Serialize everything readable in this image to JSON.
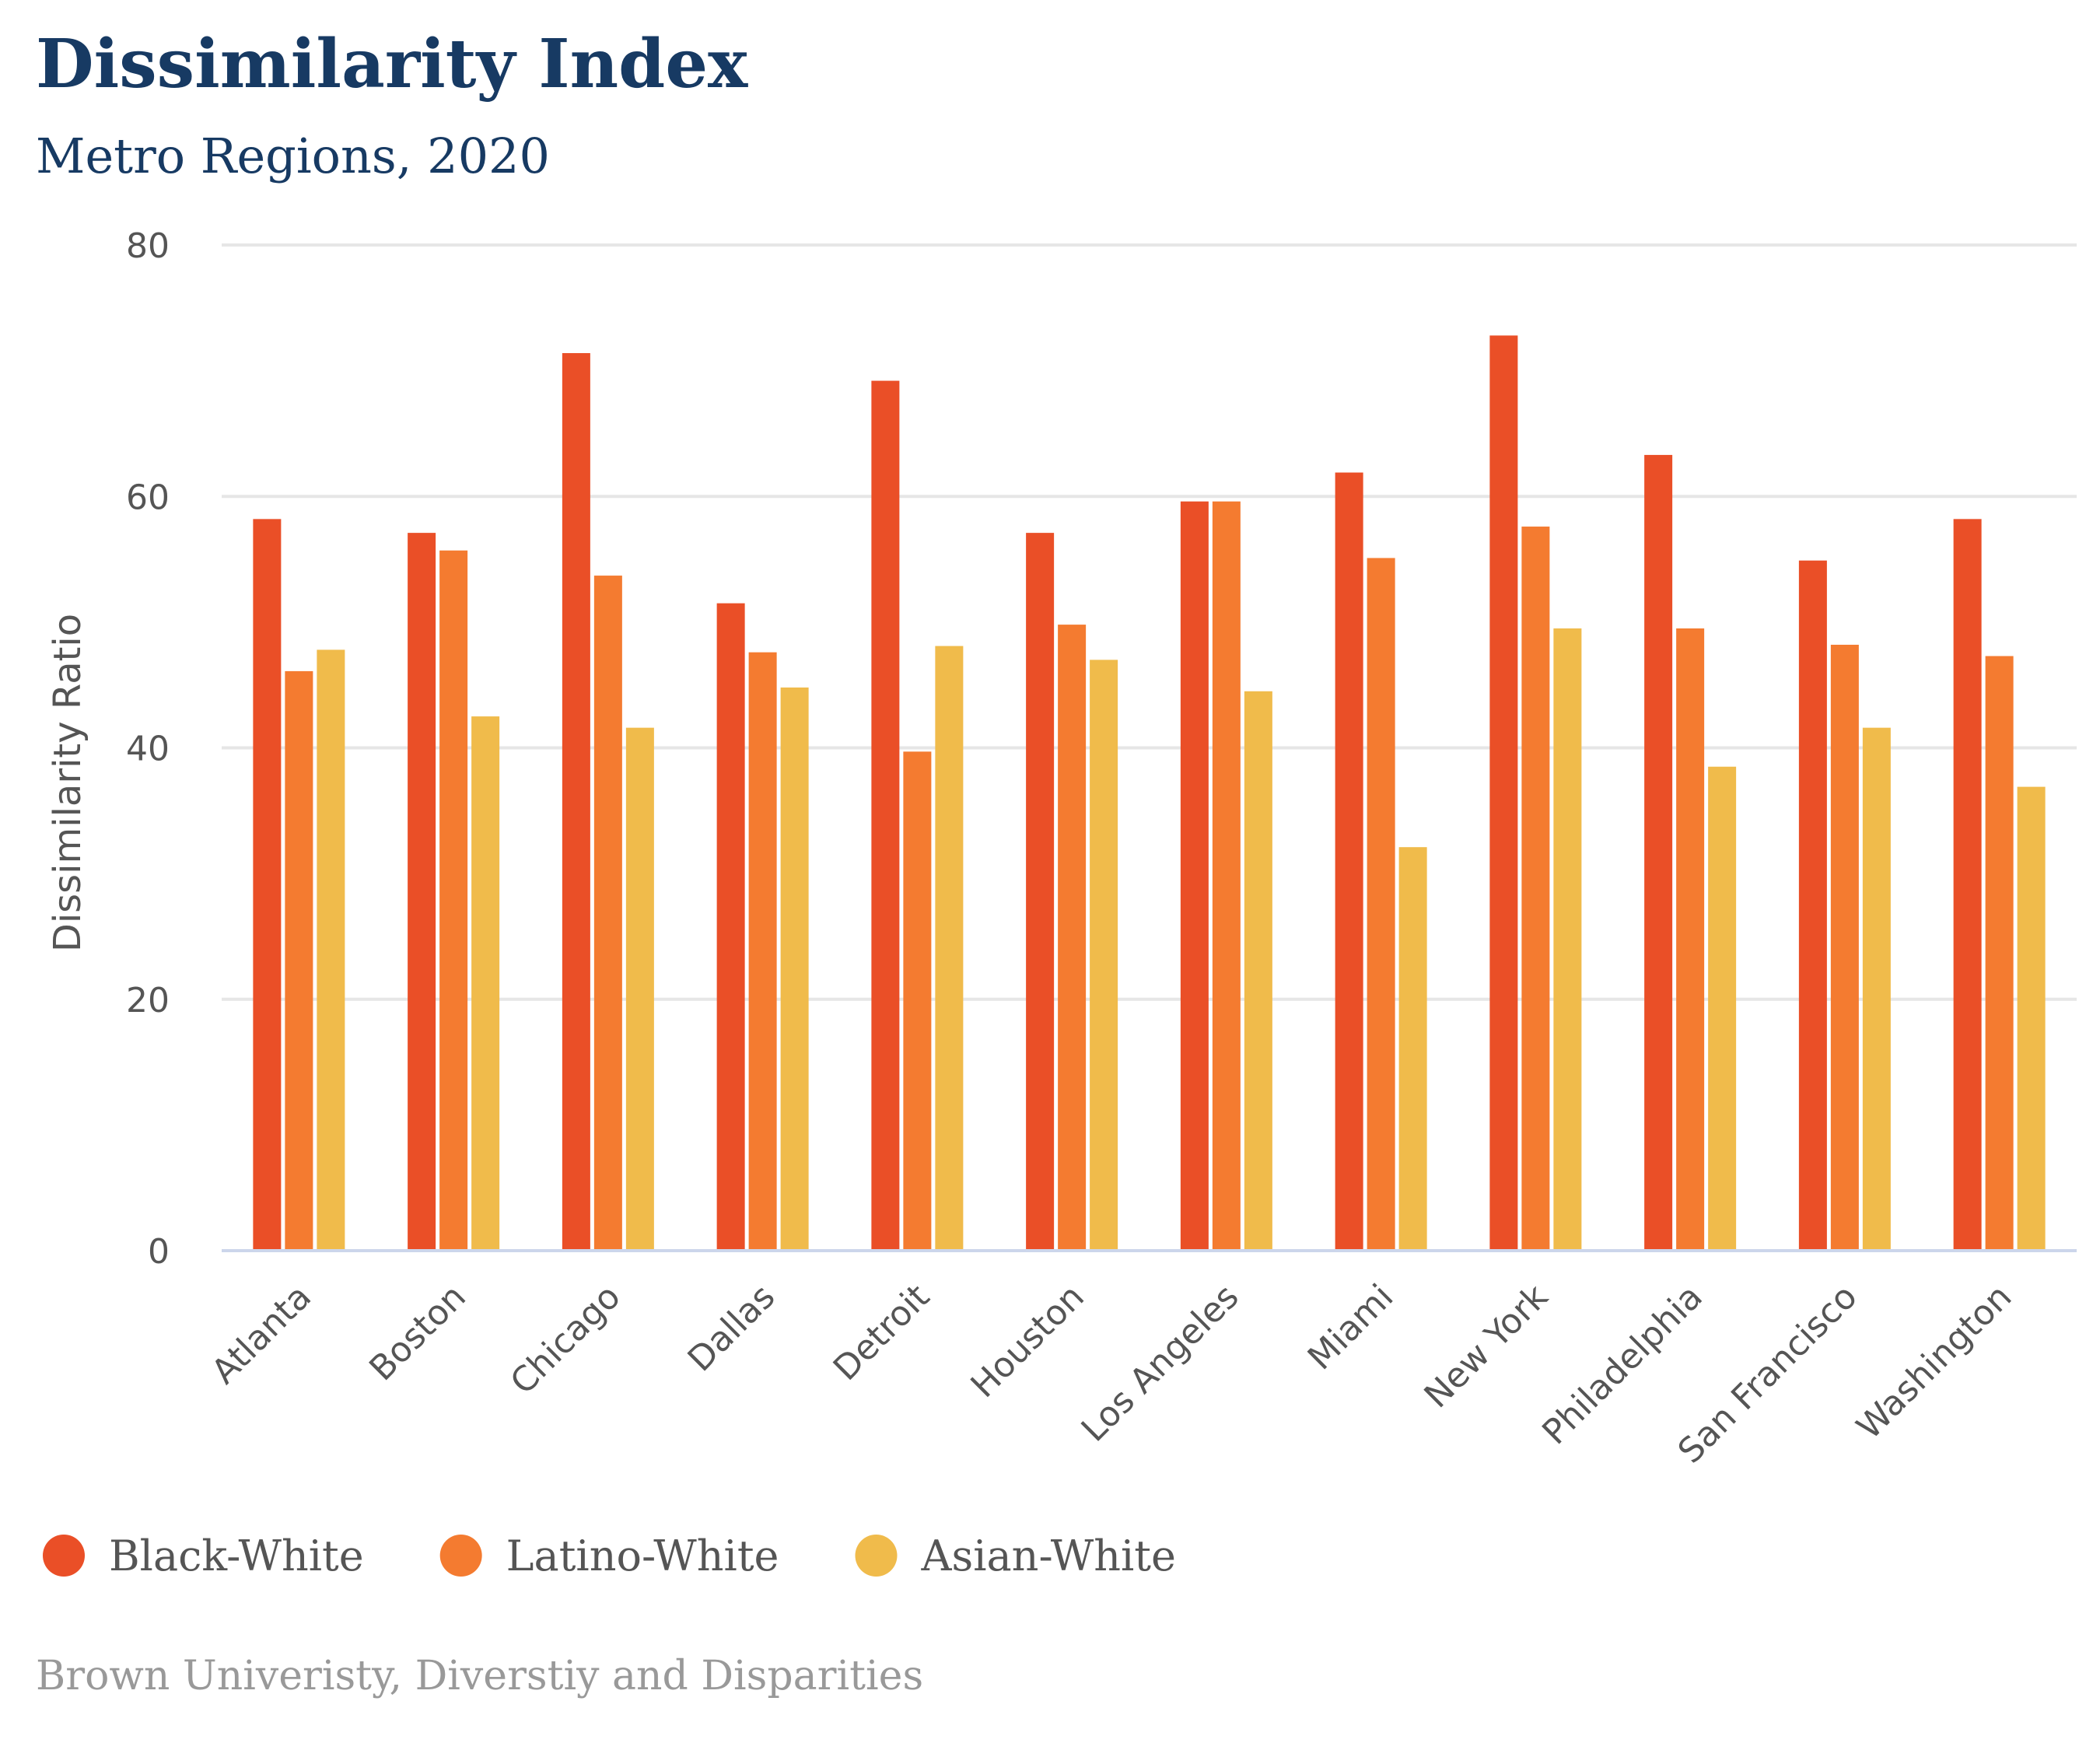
{
  "chart_data": {
    "type": "bar",
    "title": "Dissimilarity Index",
    "subtitle": "Metro Regions, 2020",
    "ylabel": "Dissimilarity Ratio",
    "xlabel": "",
    "ylim": [
      0,
      80
    ],
    "yticks": [
      0,
      20,
      40,
      60,
      80
    ],
    "grid": true,
    "categories": [
      "Atlanta",
      "Boston",
      "Chicago",
      "Dallas",
      "Detroit",
      "Houston",
      "Los Angeles",
      "Miami",
      "New York",
      "Philadelphia",
      "San Francisco",
      "Washington"
    ],
    "series": [
      {
        "name": "Black-White",
        "color": "#ea4f27",
        "values": [
          58.2,
          57.1,
          71.4,
          51.5,
          69.2,
          57.1,
          59.6,
          61.9,
          72.8,
          63.3,
          54.9,
          58.2
        ]
      },
      {
        "name": "Latino-White",
        "color": "#f47b30",
        "values": [
          46.1,
          55.7,
          53.7,
          47.6,
          39.7,
          49.8,
          59.6,
          55.1,
          57.6,
          49.5,
          48.2,
          47.3
        ]
      },
      {
        "name": "Asian-White",
        "color": "#f0bb4b",
        "values": [
          47.8,
          42.5,
          41.6,
          44.8,
          48.1,
          47.0,
          44.5,
          32.1,
          49.5,
          38.5,
          41.6,
          36.9
        ]
      }
    ],
    "legend_position": "bottom-left",
    "source": "Brown Univeristy, Diverstiy and Disparities"
  }
}
